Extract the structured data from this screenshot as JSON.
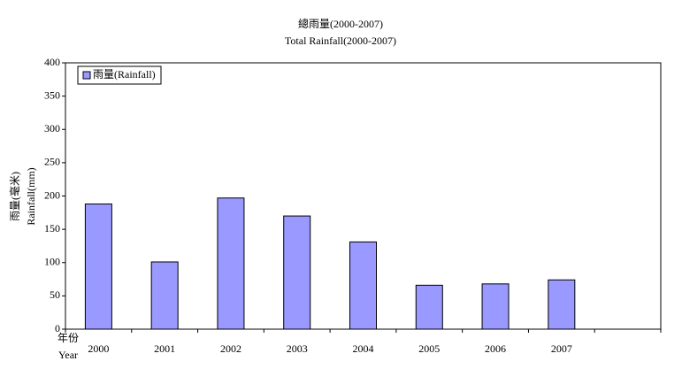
{
  "chart_data": {
    "type": "bar",
    "title": "總雨量(2000-2007)",
    "subtitle": "Total Rainfall(2000-2007)",
    "ylabel": [
      "雨量(毫米)",
      "Rainfall(mm)"
    ],
    "xlabel": [
      "年份",
      "Year"
    ],
    "categories": [
      "2000",
      "2001",
      "2002",
      "2003",
      "2004",
      "2005",
      "2006",
      "2007",
      null
    ],
    "series": [
      {
        "name": "雨量(Rainfall)",
        "color": "#9999ff",
        "values": [
          188,
          101,
          197,
          170,
          131,
          66,
          68,
          74,
          null
        ]
      }
    ],
    "ylim": [
      0,
      400
    ],
    "yticks": [
      0,
      50,
      100,
      150,
      200,
      250,
      300,
      350,
      400
    ],
    "grid": false,
    "legend": "upper-left"
  }
}
